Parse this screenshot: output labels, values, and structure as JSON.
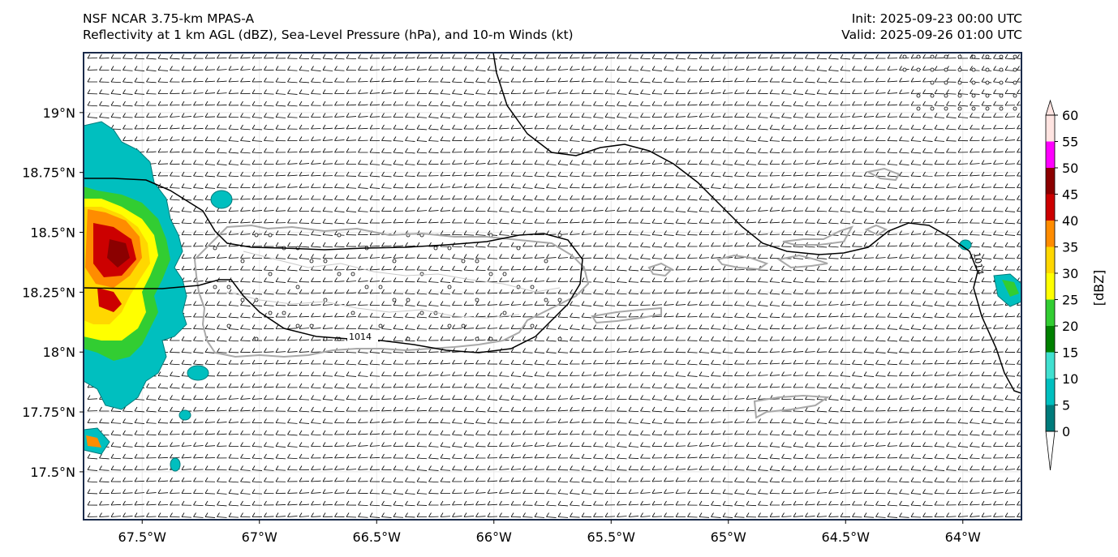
{
  "header": {
    "model": "NSF NCAR 3.75-km MPAS-A",
    "fields": "Reflectivity at 1 km AGL (dBZ), Sea-Level Pressure (hPa), and 10-m Winds (kt)",
    "init": "Init: 2025-09-23 00:00 UTC",
    "valid": "Valid: 2025-09-26 01:00 UTC"
  },
  "axes": {
    "lat_labels": [
      "19°N",
      "18.75°N",
      "18.5°N",
      "18.25°N",
      "18°N",
      "17.75°N",
      "17.5°N"
    ],
    "lat_values": [
      19.0,
      18.75,
      18.5,
      18.25,
      18.0,
      17.75,
      17.5
    ],
    "lon_labels": [
      "67.5°W",
      "67°W",
      "66.5°W",
      "66°W",
      "65.5°W",
      "65°W",
      "64.5°W",
      "64°W"
    ],
    "lon_values": [
      -67.5,
      -67.0,
      -66.5,
      -66.0,
      -65.5,
      -65.0,
      -64.5,
      -64.0
    ],
    "lon_range": [
      -67.75,
      -63.75
    ],
    "lat_range": [
      17.3,
      19.25
    ]
  },
  "isobars": {
    "labels": [
      "1014",
      "1014"
    ]
  },
  "colorbar": {
    "title": "[dBZ]",
    "ticks": [
      "0",
      "5",
      "10",
      "15",
      "20",
      "25",
      "30",
      "35",
      "40",
      "45",
      "50",
      "55",
      "60"
    ],
    "colors": [
      "#007b7b",
      "#00bfbf",
      "#40e0d0",
      "#008000",
      "#32cd32",
      "#ffff00",
      "#ffd700",
      "#ff8c00",
      "#cc0000",
      "#8b0000",
      "#ff00ff",
      "#ffe4e1"
    ]
  }
}
